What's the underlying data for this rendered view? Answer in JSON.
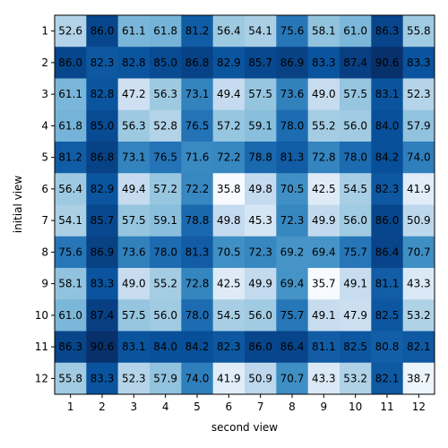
{
  "chart_data": {
    "type": "heatmap",
    "title": "",
    "xlabel": "second view",
    "ylabel": "initial view",
    "x_categories": [
      "1",
      "2",
      "3",
      "4",
      "5",
      "6",
      "7",
      "8",
      "9",
      "10",
      "11",
      "12"
    ],
    "y_categories": [
      "1",
      "2",
      "3",
      "4",
      "5",
      "6",
      "7",
      "8",
      "9",
      "10",
      "11",
      "12"
    ],
    "values": [
      [
        52.6,
        86.0,
        61.1,
        61.8,
        81.2,
        56.4,
        54.1,
        75.6,
        58.1,
        61.0,
        86.3,
        55.8
      ],
      [
        86.0,
        82.3,
        82.8,
        85.0,
        86.8,
        82.9,
        85.7,
        86.9,
        83.3,
        87.4,
        90.6,
        83.3
      ],
      [
        61.1,
        82.8,
        47.2,
        56.3,
        73.1,
        49.4,
        57.5,
        73.6,
        49.0,
        57.5,
        83.1,
        52.3
      ],
      [
        61.8,
        85.0,
        56.3,
        52.8,
        76.5,
        57.2,
        59.1,
        78.0,
        55.2,
        56.0,
        84.0,
        57.9
      ],
      [
        81.2,
        86.8,
        73.1,
        76.5,
        71.6,
        72.2,
        78.8,
        81.3,
        72.8,
        78.0,
        84.2,
        74.0
      ],
      [
        56.4,
        82.9,
        49.4,
        57.2,
        72.2,
        35.8,
        49.8,
        70.5,
        42.5,
        54.5,
        82.3,
        41.9
      ],
      [
        54.1,
        85.7,
        57.5,
        59.1,
        78.8,
        49.8,
        45.3,
        72.3,
        49.9,
        56.0,
        86.0,
        50.9
      ],
      [
        75.6,
        86.9,
        73.6,
        78.0,
        81.3,
        70.5,
        72.3,
        69.2,
        69.4,
        75.7,
        86.4,
        70.7
      ],
      [
        58.1,
        83.3,
        49.0,
        55.2,
        72.8,
        42.5,
        49.9,
        69.4,
        35.7,
        49.1,
        81.1,
        43.3
      ],
      [
        61.0,
        87.4,
        57.5,
        56.0,
        78.0,
        54.5,
        56.0,
        75.7,
        49.1,
        47.9,
        82.5,
        53.2
      ],
      [
        86.3,
        90.6,
        83.1,
        84.0,
        84.2,
        82.3,
        86.0,
        86.4,
        81.1,
        82.5,
        80.8,
        82.1
      ],
      [
        55.8,
        83.3,
        52.3,
        57.9,
        74.0,
        41.9,
        50.9,
        70.7,
        43.3,
        53.2,
        82.1,
        38.7
      ]
    ],
    "colormap": "Blues",
    "value_range": [
      35.7,
      90.6
    ],
    "grid": false,
    "legend": "none"
  }
}
